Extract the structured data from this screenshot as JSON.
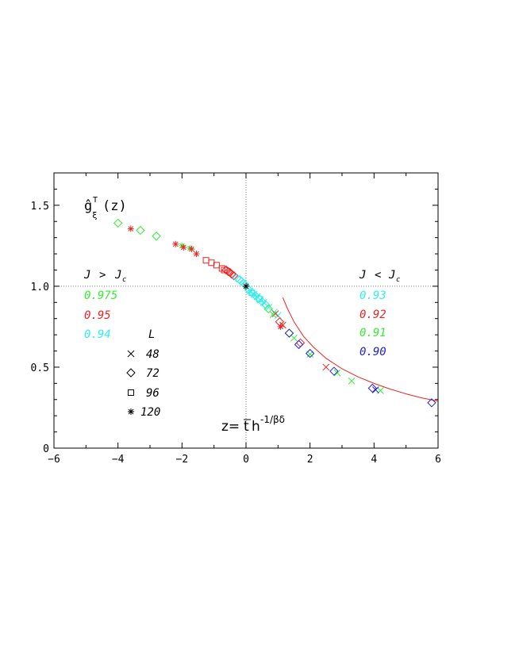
{
  "chart_data": {
    "type": "scatter",
    "title": "",
    "ylabel": "ĝ",
    "ylabel_sub": "ξ",
    "ylabel_sup": "T",
    "ylabel_arg": "(z)",
    "xlabel_left": "z=",
    "xlabel_t": "t",
    "xlabel_h": "h",
    "xlabel_sup": "-1/βδ",
    "xlim": [
      -6,
      6
    ],
    "ylim": [
      0,
      1.7
    ],
    "xticks": [
      "−6",
      "−4",
      "−2",
      "0",
      "2",
      "4",
      "6"
    ],
    "yticks": [
      "0",
      "0.5",
      "1.0",
      "1.5"
    ],
    "reference_lines": {
      "x": 0,
      "y": 1.0,
      "style": "dotted"
    },
    "legend_left": {
      "header_J": "J",
      "header_rel": ">",
      "header_Jc": "J",
      "header_sub": "c",
      "entries": [
        {
          "value": "0.975",
          "color": "#33ee33"
        },
        {
          "value": "0.95",
          "color": "#ee2222"
        },
        {
          "value": "0.94",
          "color": "#33eeee"
        }
      ]
    },
    "legend_right": {
      "header_J": "J",
      "header_rel": "<",
      "header_Jc": "J",
      "header_sub": "c",
      "entries": [
        {
          "value": "0.93",
          "color": "#33eeee"
        },
        {
          "value": "0.92",
          "color": "#ee2222"
        },
        {
          "value": "0.91",
          "color": "#33ee33"
        },
        {
          "value": "0.90",
          "color": "#2222cc"
        }
      ]
    },
    "legend_L": {
      "title": "L",
      "entries": [
        {
          "marker": "cross",
          "label": "48"
        },
        {
          "marker": "diamond",
          "label": "72"
        },
        {
          "marker": "square",
          "label": "96"
        },
        {
          "marker": "star",
          "label": "120"
        }
      ]
    },
    "series": [
      {
        "J": "0.975",
        "color": "#33ee33",
        "marker": "diamond",
        "points": [
          [
            -4.0,
            1.39
          ],
          [
            -3.3,
            1.345
          ],
          [
            -2.8,
            1.31
          ]
        ]
      },
      {
        "J": "0.975",
        "color": "#33ee33",
        "marker": "star",
        "points": [
          [
            -2.0,
            1.25
          ],
          [
            -1.75,
            1.235
          ]
        ]
      },
      {
        "J": "0.95",
        "color": "#ee2222",
        "marker": "star",
        "points": [
          [
            -3.6,
            1.355
          ],
          [
            -2.2,
            1.26
          ],
          [
            -1.95,
            1.24
          ],
          [
            -1.7,
            1.23
          ],
          [
            -1.55,
            1.2
          ]
        ]
      },
      {
        "J": "0.95",
        "color": "#ee2222",
        "marker": "square",
        "points": [
          [
            -1.25,
            1.16
          ],
          [
            -1.08,
            1.145
          ],
          [
            -0.92,
            1.13
          ],
          [
            -0.75,
            1.11
          ],
          [
            -0.68,
            1.1
          ]
        ]
      },
      {
        "J": "0.95",
        "color": "#ee2222",
        "marker": "diamond",
        "points": [
          [
            -0.62,
            1.1
          ],
          [
            -0.55,
            1.09
          ],
          [
            -0.5,
            1.085
          ],
          [
            -0.45,
            1.075
          ],
          [
            -0.38,
            1.065
          ]
        ]
      },
      {
        "J": "0.94",
        "color": "#33eeee",
        "marker": "diamond",
        "points": [
          [
            -0.28,
            1.05
          ],
          [
            -0.2,
            1.04
          ],
          [
            -0.14,
            1.03
          ],
          [
            -0.08,
            1.02
          ],
          [
            -0.03,
            1.01
          ]
        ]
      },
      {
        "J": "0.93",
        "color": "#33eeee",
        "marker": "diamond",
        "points": [
          [
            0.08,
            0.98
          ],
          [
            0.15,
            0.965
          ],
          [
            0.22,
            0.955
          ],
          [
            0.3,
            0.94
          ],
          [
            0.4,
            0.925
          ],
          [
            0.5,
            0.905
          ],
          [
            0.62,
            0.885
          ]
        ]
      },
      {
        "J": "0.93",
        "color": "#33eeee",
        "marker": "cross",
        "points": [
          [
            0.12,
            0.97
          ],
          [
            0.25,
            0.95
          ],
          [
            0.35,
            0.935
          ],
          [
            0.45,
            0.915
          ],
          [
            0.55,
            0.9
          ],
          [
            0.72,
            0.87
          ],
          [
            0.88,
            0.84
          ],
          [
            1.0,
            0.82
          ]
        ]
      },
      {
        "J": "0.93",
        "color": "#33eeee",
        "marker": "square",
        "points": [
          [
            0.18,
            0.96
          ],
          [
            0.42,
            0.92
          ]
        ]
      },
      {
        "J": "0.92",
        "color": "#ee2222",
        "marker": "cross",
        "points": [
          [
            0.92,
            0.83
          ],
          [
            1.15,
            0.76
          ],
          [
            2.5,
            0.5
          ]
        ]
      },
      {
        "J": "0.92",
        "color": "#ee2222",
        "marker": "diamond",
        "points": [
          [
            1.05,
            0.78
          ],
          [
            1.7,
            0.65
          ]
        ]
      },
      {
        "J": "0.92",
        "color": "#ee2222",
        "marker": "star",
        "points": [
          [
            1.08,
            0.75
          ]
        ]
      },
      {
        "J": "0.91",
        "color": "#33ee33",
        "marker": "cross",
        "points": [
          [
            0.85,
            0.825
          ],
          [
            1.5,
            0.68
          ],
          [
            2.0,
            0.58
          ],
          [
            2.85,
            0.465
          ],
          [
            3.3,
            0.415
          ],
          [
            4.2,
            0.355
          ]
        ]
      },
      {
        "J": "0.91",
        "color": "#33ee33",
        "marker": "diamond",
        "points": [
          [
            0.7,
            0.86
          ],
          [
            1.35,
            0.71
          ]
        ]
      },
      {
        "J": "0.90",
        "color": "#2222cc",
        "marker": "diamond",
        "points": [
          [
            1.35,
            0.71
          ],
          [
            1.65,
            0.64
          ],
          [
            2.0,
            0.585
          ],
          [
            2.75,
            0.475
          ],
          [
            3.95,
            0.37
          ],
          [
            5.8,
            0.28
          ]
        ]
      },
      {
        "J": "0.90",
        "color": "#2222cc",
        "marker": "cross",
        "points": [
          [
            4.05,
            0.36
          ]
        ]
      },
      {
        "J": "Jc",
        "color": "#000000",
        "marker": "star",
        "points": [
          [
            0.0,
            1.0
          ]
        ]
      }
    ],
    "fit_curve": {
      "color": "#ee2222",
      "points": [
        [
          1.15,
          0.93
        ],
        [
          1.3,
          0.86
        ],
        [
          1.5,
          0.78
        ],
        [
          1.8,
          0.69
        ],
        [
          2.1,
          0.625
        ],
        [
          2.5,
          0.555
        ],
        [
          3.0,
          0.49
        ],
        [
          3.5,
          0.44
        ],
        [
          4.0,
          0.4
        ],
        [
          4.5,
          0.365
        ],
        [
          5.0,
          0.335
        ],
        [
          5.5,
          0.31
        ],
        [
          6.0,
          0.29
        ]
      ]
    }
  }
}
